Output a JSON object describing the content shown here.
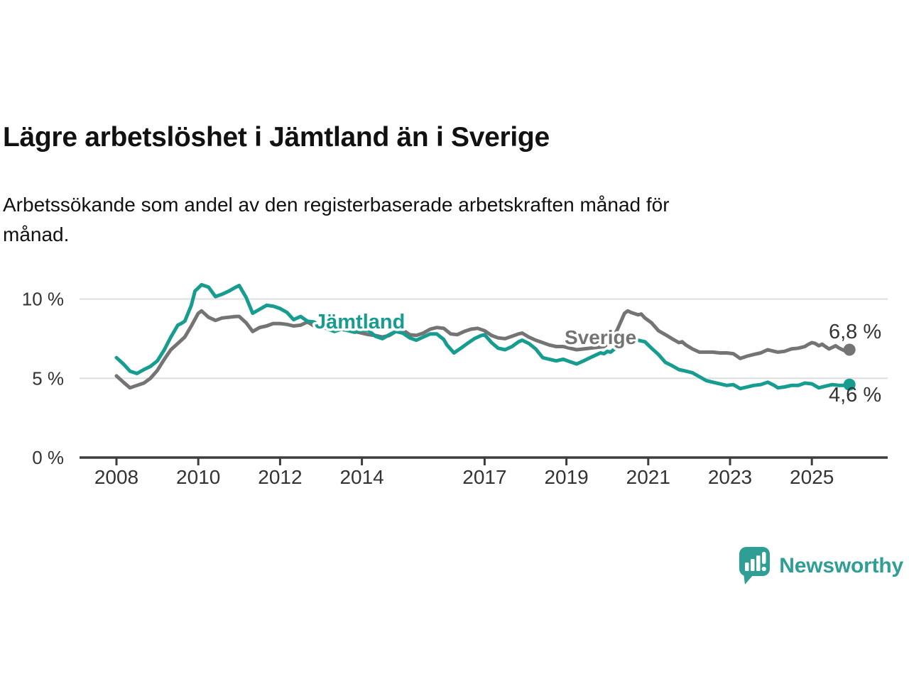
{
  "header": {
    "title": "Lägre arbetslöshet i Jämtland än i Sverige",
    "subtitle": "Arbetssökande som andel av den registerbaserade arbetskraften månad för\nmånad."
  },
  "colors": {
    "jamtland": "#169d90",
    "sverige": "#747474",
    "axis": "#3d3d3d",
    "grid": "#dedede",
    "tick_text": "#333333",
    "value_text": "#333333",
    "brand_teal": "#2f9f95"
  },
  "chart_data": {
    "type": "line",
    "title": "Lägre arbetslöshet i Jämtland än i Sverige",
    "subtitle": "Arbetssökande som andel av den registerbaserade arbetskraften månad för månad.",
    "xlabel": "",
    "ylabel": "",
    "x_unit": "year",
    "y_unit": "%",
    "xlim": [
      2007.1,
      2026.85
    ],
    "ylim": [
      0,
      11.8
    ],
    "grid": "horizontal",
    "legend_position": "inline-labels",
    "x_ticks": [
      2008,
      2010,
      2012,
      2014,
      2017,
      2019,
      2021,
      2023,
      2025
    ],
    "y_ticks": [
      {
        "value": 0,
        "label": "0 %"
      },
      {
        "value": 5,
        "label": "5 %"
      },
      {
        "value": 10,
        "label": "10 %"
      }
    ],
    "series": [
      {
        "name": "Sverige",
        "color": "#747474",
        "end_value": 6.8,
        "end_label": "6,8 %",
        "points": [
          [
            2008.0,
            5.15
          ],
          [
            2008.17,
            4.75
          ],
          [
            2008.33,
            4.4
          ],
          [
            2008.5,
            4.55
          ],
          [
            2008.67,
            4.7
          ],
          [
            2008.83,
            5.0
          ],
          [
            2009.0,
            5.5
          ],
          [
            2009.17,
            6.2
          ],
          [
            2009.33,
            6.8
          ],
          [
            2009.5,
            7.2
          ],
          [
            2009.67,
            7.6
          ],
          [
            2009.83,
            8.3
          ],
          [
            2010.0,
            9.1
          ],
          [
            2010.08,
            9.25
          ],
          [
            2010.25,
            8.85
          ],
          [
            2010.42,
            8.65
          ],
          [
            2010.58,
            8.8
          ],
          [
            2010.75,
            8.85
          ],
          [
            2010.92,
            8.9
          ],
          [
            2011.0,
            8.9
          ],
          [
            2011.17,
            8.5
          ],
          [
            2011.33,
            7.95
          ],
          [
            2011.5,
            8.2
          ],
          [
            2011.67,
            8.3
          ],
          [
            2011.83,
            8.45
          ],
          [
            2012.0,
            8.45
          ],
          [
            2012.17,
            8.4
          ],
          [
            2012.33,
            8.3
          ],
          [
            2012.5,
            8.35
          ],
          [
            2012.67,
            8.55
          ],
          [
            2012.83,
            8.3
          ],
          [
            2013.0,
            8.15
          ],
          [
            2013.17,
            8.2
          ],
          [
            2013.33,
            8.2
          ],
          [
            2013.5,
            8.15
          ],
          [
            2013.67,
            8.05
          ],
          [
            2013.83,
            7.95
          ],
          [
            2014.0,
            7.85
          ],
          [
            2014.17,
            7.75
          ],
          [
            2014.33,
            7.7
          ],
          [
            2014.5,
            7.6
          ],
          [
            2014.67,
            7.7
          ],
          [
            2014.83,
            7.95
          ],
          [
            2015.0,
            8.05
          ],
          [
            2015.17,
            7.75
          ],
          [
            2015.33,
            7.7
          ],
          [
            2015.5,
            7.85
          ],
          [
            2015.67,
            8.1
          ],
          [
            2015.83,
            8.2
          ],
          [
            2016.0,
            8.15
          ],
          [
            2016.17,
            7.8
          ],
          [
            2016.33,
            7.75
          ],
          [
            2016.5,
            7.95
          ],
          [
            2016.67,
            8.1
          ],
          [
            2016.83,
            8.15
          ],
          [
            2017.0,
            8.0
          ],
          [
            2017.17,
            7.7
          ],
          [
            2017.33,
            7.55
          ],
          [
            2017.5,
            7.5
          ],
          [
            2017.67,
            7.65
          ],
          [
            2017.83,
            7.8
          ],
          [
            2017.92,
            7.85
          ],
          [
            2018.08,
            7.6
          ],
          [
            2018.25,
            7.4
          ],
          [
            2018.42,
            7.25
          ],
          [
            2018.58,
            7.1
          ],
          [
            2018.75,
            7.0
          ],
          [
            2018.92,
            7.0
          ],
          [
            2019.08,
            6.9
          ],
          [
            2019.25,
            6.8
          ],
          [
            2019.42,
            6.85
          ],
          [
            2019.58,
            6.9
          ],
          [
            2019.75,
            6.95
          ],
          [
            2019.92,
            7.0
          ],
          [
            2020.08,
            7.3
          ],
          [
            2020.25,
            8.1
          ],
          [
            2020.42,
            9.1
          ],
          [
            2020.5,
            9.25
          ],
          [
            2020.58,
            9.15
          ],
          [
            2020.75,
            9.0
          ],
          [
            2020.83,
            9.05
          ],
          [
            2020.92,
            8.8
          ],
          [
            2021.08,
            8.5
          ],
          [
            2021.25,
            8.0
          ],
          [
            2021.42,
            7.75
          ],
          [
            2021.58,
            7.5
          ],
          [
            2021.75,
            7.25
          ],
          [
            2021.83,
            7.3
          ],
          [
            2021.92,
            7.1
          ],
          [
            2022.08,
            6.85
          ],
          [
            2022.25,
            6.65
          ],
          [
            2022.42,
            6.65
          ],
          [
            2022.58,
            6.65
          ],
          [
            2022.75,
            6.6
          ],
          [
            2022.92,
            6.6
          ],
          [
            2023.08,
            6.55
          ],
          [
            2023.25,
            6.25
          ],
          [
            2023.42,
            6.4
          ],
          [
            2023.58,
            6.5
          ],
          [
            2023.75,
            6.6
          ],
          [
            2023.92,
            6.8
          ],
          [
            2024.08,
            6.7
          ],
          [
            2024.17,
            6.65
          ],
          [
            2024.33,
            6.7
          ],
          [
            2024.5,
            6.85
          ],
          [
            2024.67,
            6.9
          ],
          [
            2024.83,
            7.0
          ],
          [
            2024.92,
            7.15
          ],
          [
            2025.0,
            7.25
          ],
          [
            2025.08,
            7.2
          ],
          [
            2025.17,
            7.05
          ],
          [
            2025.25,
            7.15
          ],
          [
            2025.33,
            7.0
          ],
          [
            2025.42,
            6.85
          ],
          [
            2025.5,
            6.95
          ],
          [
            2025.58,
            7.05
          ],
          [
            2025.67,
            6.9
          ],
          [
            2025.75,
            6.8
          ],
          [
            2025.83,
            6.7
          ],
          [
            2025.92,
            6.8
          ]
        ]
      },
      {
        "name": "Jämtland",
        "color": "#169d90",
        "end_value": 4.6,
        "end_label": "4,6 %",
        "points": [
          [
            2008.0,
            6.3
          ],
          [
            2008.17,
            5.9
          ],
          [
            2008.33,
            5.45
          ],
          [
            2008.5,
            5.3
          ],
          [
            2008.67,
            5.55
          ],
          [
            2008.83,
            5.75
          ],
          [
            2009.0,
            6.1
          ],
          [
            2009.17,
            6.8
          ],
          [
            2009.33,
            7.6
          ],
          [
            2009.5,
            8.35
          ],
          [
            2009.58,
            8.45
          ],
          [
            2009.67,
            8.6
          ],
          [
            2009.83,
            9.6
          ],
          [
            2009.92,
            10.5
          ],
          [
            2010.08,
            10.9
          ],
          [
            2010.25,
            10.75
          ],
          [
            2010.42,
            10.15
          ],
          [
            2010.58,
            10.3
          ],
          [
            2010.75,
            10.5
          ],
          [
            2010.92,
            10.75
          ],
          [
            2011.0,
            10.85
          ],
          [
            2011.17,
            10.1
          ],
          [
            2011.33,
            9.1
          ],
          [
            2011.5,
            9.35
          ],
          [
            2011.67,
            9.6
          ],
          [
            2011.83,
            9.55
          ],
          [
            2012.0,
            9.4
          ],
          [
            2012.17,
            9.15
          ],
          [
            2012.33,
            8.7
          ],
          [
            2012.5,
            8.9
          ],
          [
            2012.67,
            8.6
          ],
          [
            2012.83,
            8.55
          ],
          [
            2013.0,
            8.3
          ],
          [
            2013.17,
            8.1
          ],
          [
            2013.33,
            7.95
          ],
          [
            2013.5,
            8.1
          ],
          [
            2013.67,
            8.0
          ],
          [
            2013.83,
            7.9
          ],
          [
            2014.0,
            8.05
          ],
          [
            2014.17,
            8.0
          ],
          [
            2014.33,
            7.65
          ],
          [
            2014.5,
            7.5
          ],
          [
            2014.67,
            7.75
          ],
          [
            2014.83,
            7.95
          ],
          [
            2015.0,
            7.85
          ],
          [
            2015.17,
            7.55
          ],
          [
            2015.33,
            7.4
          ],
          [
            2015.5,
            7.6
          ],
          [
            2015.67,
            7.8
          ],
          [
            2015.83,
            7.8
          ],
          [
            2016.0,
            7.45
          ],
          [
            2016.08,
            7.1
          ],
          [
            2016.25,
            6.6
          ],
          [
            2016.42,
            6.9
          ],
          [
            2016.58,
            7.2
          ],
          [
            2016.75,
            7.5
          ],
          [
            2016.92,
            7.7
          ],
          [
            2017.0,
            7.75
          ],
          [
            2017.17,
            7.25
          ],
          [
            2017.33,
            6.9
          ],
          [
            2017.5,
            6.8
          ],
          [
            2017.67,
            7.0
          ],
          [
            2017.83,
            7.3
          ],
          [
            2017.92,
            7.4
          ],
          [
            2018.08,
            7.2
          ],
          [
            2018.25,
            6.85
          ],
          [
            2018.42,
            6.3
          ],
          [
            2018.58,
            6.2
          ],
          [
            2018.75,
            6.1
          ],
          [
            2018.92,
            6.2
          ],
          [
            2019.08,
            6.05
          ],
          [
            2019.25,
            5.9
          ],
          [
            2019.42,
            6.1
          ],
          [
            2019.58,
            6.3
          ],
          [
            2019.75,
            6.5
          ],
          [
            2019.83,
            6.6
          ],
          [
            2019.92,
            6.55
          ],
          [
            2020.0,
            6.7
          ],
          [
            2020.08,
            6.65
          ],
          [
            2020.25,
            7.0
          ],
          [
            2020.42,
            7.3
          ],
          [
            2020.58,
            7.45
          ],
          [
            2020.75,
            7.4
          ],
          [
            2020.92,
            7.3
          ],
          [
            2021.08,
            6.9
          ],
          [
            2021.25,
            6.5
          ],
          [
            2021.42,
            6.0
          ],
          [
            2021.58,
            5.8
          ],
          [
            2021.75,
            5.55
          ],
          [
            2021.92,
            5.45
          ],
          [
            2022.08,
            5.35
          ],
          [
            2022.25,
            5.1
          ],
          [
            2022.42,
            4.85
          ],
          [
            2022.58,
            4.75
          ],
          [
            2022.75,
            4.65
          ],
          [
            2022.92,
            4.55
          ],
          [
            2023.08,
            4.6
          ],
          [
            2023.25,
            4.35
          ],
          [
            2023.42,
            4.45
          ],
          [
            2023.58,
            4.55
          ],
          [
            2023.75,
            4.6
          ],
          [
            2023.92,
            4.75
          ],
          [
            2024.08,
            4.55
          ],
          [
            2024.17,
            4.4
          ],
          [
            2024.33,
            4.45
          ],
          [
            2024.5,
            4.55
          ],
          [
            2024.67,
            4.55
          ],
          [
            2024.83,
            4.7
          ],
          [
            2025.0,
            4.65
          ],
          [
            2025.17,
            4.4
          ],
          [
            2025.33,
            4.5
          ],
          [
            2025.5,
            4.6
          ],
          [
            2025.67,
            4.55
          ],
          [
            2025.83,
            4.55
          ],
          [
            2025.92,
            4.6
          ]
        ]
      }
    ]
  },
  "footer": {
    "brand": "Newsworthy"
  }
}
